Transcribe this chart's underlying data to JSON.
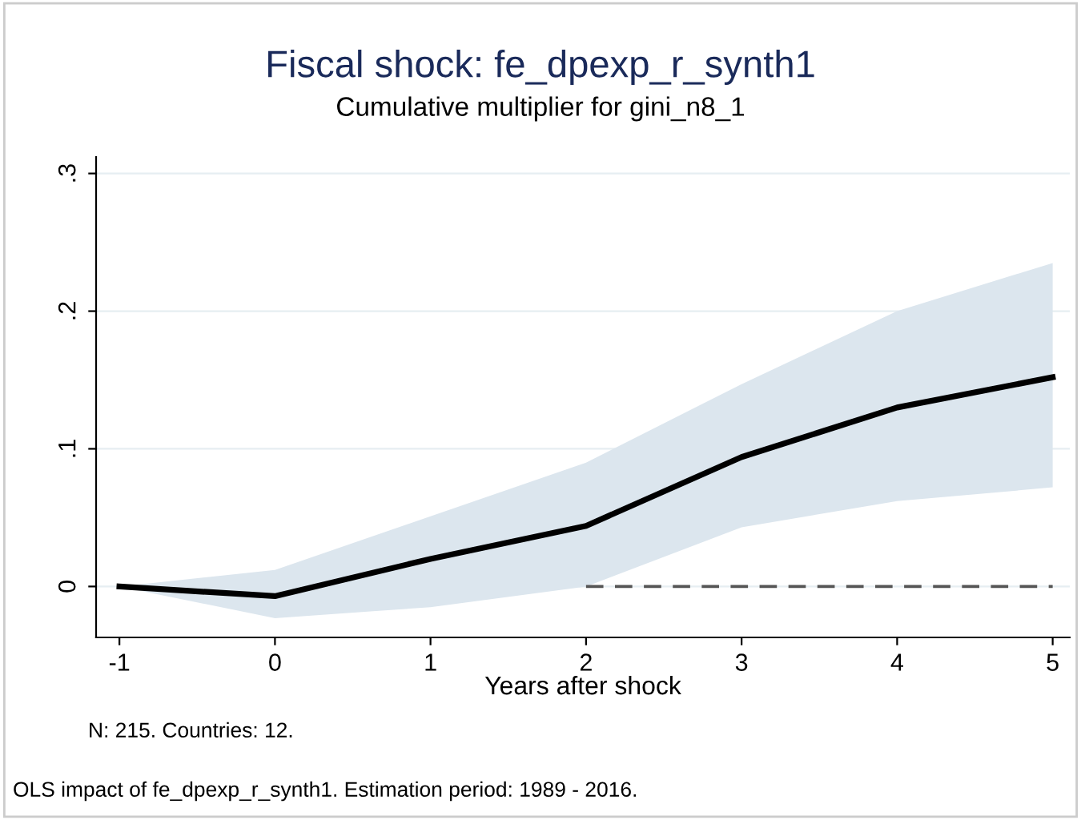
{
  "chart_data": {
    "type": "line",
    "title": "Fiscal shock: fe_dpexp_r_synth1",
    "subtitle": "Cumulative multiplier for gini_n8_1",
    "xlabel": "Years after shock",
    "annotations": [
      "N: 215. Countries: 12.",
      "OLS impact of fe_dpexp_r_synth1. Estimation period: 1989 - 2016."
    ],
    "x": [
      -1,
      0,
      1,
      2,
      3,
      4,
      5
    ],
    "series": [
      {
        "color": "#000000",
        "values": [
          0,
          -0.007,
          0.02,
          0.044,
          0.094,
          0.13,
          0.152
        ],
        "lower": [
          0,
          -0.023,
          -0.015,
          0.0,
          0.043,
          0.062,
          0.072
        ],
        "upper": [
          0,
          0.012,
          0.051,
          0.09,
          0.147,
          0.2,
          0.235
        ]
      },
      {
        "color": "#555555",
        "x": [
          2,
          5
        ],
        "values": [
          0,
          0
        ],
        "line_style": "dashed"
      }
    ],
    "xlim": [
      -1.15,
      5.11
    ],
    "ylim": [
      -0.037,
      0.312
    ],
    "xticks": [
      -1,
      0,
      1,
      2,
      3,
      4,
      5
    ],
    "yticks": [
      {
        "value": 0,
        "label": "0"
      },
      {
        "value": 0.1,
        "label": ".1"
      },
      {
        "value": 0.2,
        "label": ".2"
      },
      {
        "value": 0.3,
        "label": ".3"
      }
    ],
    "grid": "y",
    "legend": false
  }
}
